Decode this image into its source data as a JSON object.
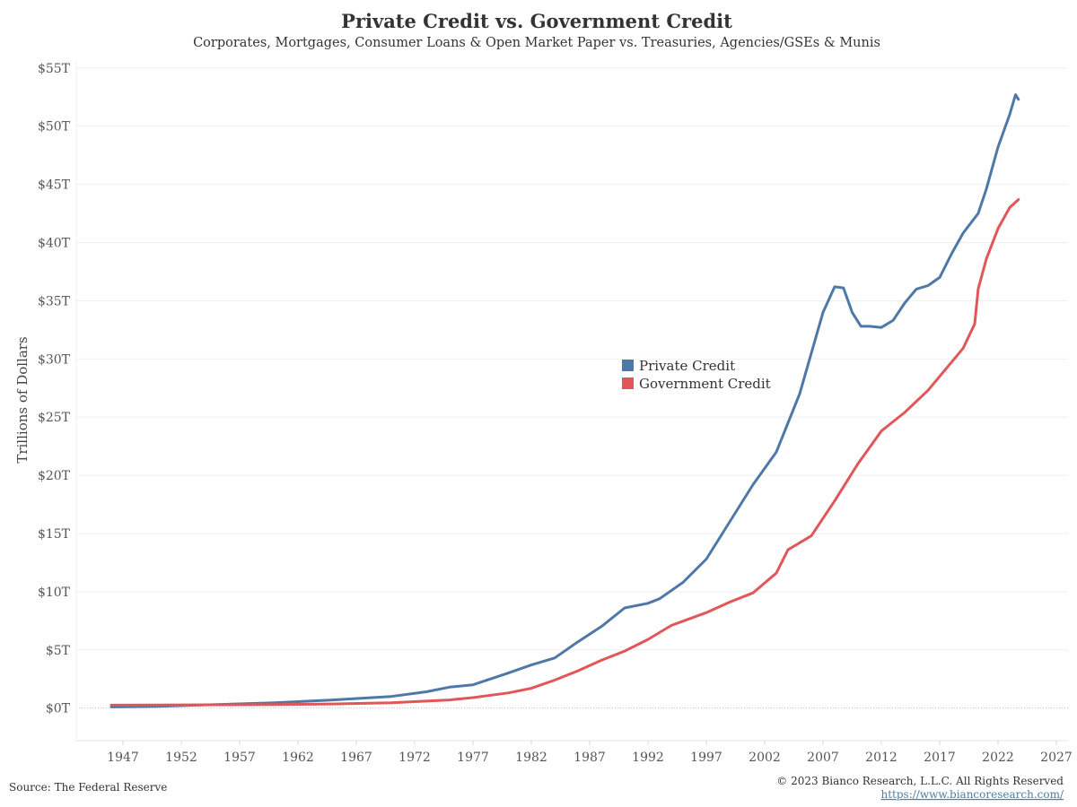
{
  "chart_data": {
    "type": "line",
    "title": "Private Credit vs. Government Credit",
    "subtitle": "Corporates, Mortgages, Consumer Loans & Open Market Paper vs. Treasuries, Agencies/GSEs & Munis",
    "xlabel": "",
    "ylabel": "Trillions of Dollars",
    "xlim": [
      1943,
      2028
    ],
    "ylim": [
      -2.8,
      55.6
    ],
    "x_ticks": [
      1947,
      1952,
      1957,
      1962,
      1967,
      1972,
      1977,
      1982,
      1987,
      1992,
      1997,
      2002,
      2007,
      2012,
      2017,
      2022,
      2027
    ],
    "x_tick_labels": [
      "1947",
      "1952",
      "1957",
      "1962",
      "1967",
      "1972",
      "1977",
      "1982",
      "1987",
      "1992",
      "1997",
      "2002",
      "2007",
      "2012",
      "2017",
      "2022",
      "2027"
    ],
    "y_ticks": [
      0,
      5,
      10,
      15,
      20,
      25,
      30,
      35,
      40,
      45,
      50,
      55
    ],
    "y_tick_labels": [
      "$0T",
      "$5T",
      "$10T",
      "$15T",
      "$20T",
      "$25T",
      "$30T",
      "$35T",
      "$40T",
      "$45T",
      "$50T",
      "$55T"
    ],
    "grid": true,
    "legend_position": "center",
    "series": [
      {
        "name": "Private Credit",
        "color": "#4e79a7",
        "x": [
          1946,
          1950,
          1955,
          1960,
          1965,
          1970,
          1973,
          1975,
          1977,
          1980,
          1982,
          1984,
          1986,
          1988,
          1990,
          1992,
          1993,
          1995,
          1997,
          1999,
          2001,
          2003,
          2005,
          2007,
          2008,
          2008.75,
          2009.5,
          2010.25,
          2011,
          2012,
          2013,
          2014,
          2015,
          2016,
          2017,
          2018,
          2019,
          2020.3,
          2021,
          2022,
          2023,
          2023.5,
          2023.75
        ],
        "y": [
          0.1,
          0.15,
          0.3,
          0.45,
          0.7,
          1.0,
          1.4,
          1.8,
          2.0,
          3.0,
          3.7,
          4.3,
          5.7,
          7.0,
          8.6,
          9.0,
          9.4,
          10.8,
          12.8,
          16.0,
          19.2,
          22.0,
          27.0,
          34.0,
          36.2,
          36.1,
          34.0,
          32.8,
          32.8,
          32.7,
          33.3,
          34.8,
          36.0,
          36.3,
          37.0,
          39.0,
          40.8,
          42.5,
          44.6,
          48.2,
          51.0,
          52.7,
          52.3
        ]
      },
      {
        "name": "Government Credit",
        "color": "#e15759",
        "x": [
          1946,
          1950,
          1955,
          1960,
          1965,
          1970,
          1975,
          1977,
          1980,
          1982,
          1984,
          1986,
          1988,
          1990,
          1992,
          1994,
          1997,
          1999,
          2001,
          2003,
          2004,
          2006,
          2008,
          2010,
          2012,
          2014,
          2016,
          2018,
          2019,
          2020,
          2020.3,
          2021,
          2022,
          2023,
          2023.75
        ],
        "y": [
          0.25,
          0.26,
          0.28,
          0.3,
          0.35,
          0.45,
          0.7,
          0.9,
          1.3,
          1.7,
          2.4,
          3.2,
          4.1,
          4.9,
          5.9,
          7.1,
          8.2,
          9.1,
          9.9,
          11.6,
          13.6,
          14.8,
          17.8,
          21.0,
          23.8,
          25.4,
          27.3,
          29.7,
          30.9,
          33.0,
          36.0,
          38.6,
          41.2,
          43.0,
          43.7
        ]
      }
    ]
  },
  "footer": {
    "source": "Source: The Federal Reserve",
    "copyright": "© 2023 Bianco Research, L.L.C. All Rights Reserved",
    "url": "https://www.biancoresearch.com/"
  }
}
